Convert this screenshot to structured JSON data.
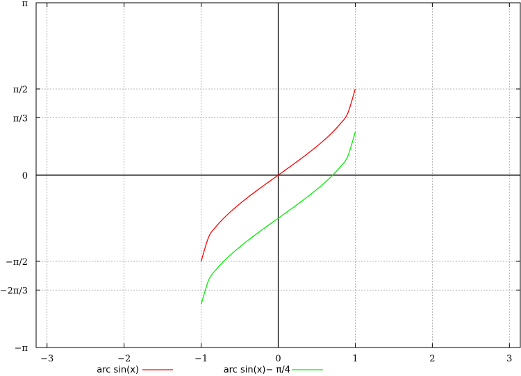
{
  "chart_data": {
    "type": "line",
    "title": "",
    "xlabel": "",
    "ylabel": "",
    "xlim": [
      -3.1416,
      3.1416
    ],
    "ylim": [
      -3.1416,
      3.1416
    ],
    "grid": true,
    "legend_position": "bottom",
    "x_ticks": [
      {
        "value": -3,
        "label": "−3"
      },
      {
        "value": -2,
        "label": "−2"
      },
      {
        "value": -1,
        "label": "−1"
      },
      {
        "value": 0,
        "label": "0"
      },
      {
        "value": 1,
        "label": "1"
      },
      {
        "value": 2,
        "label": "2"
      },
      {
        "value": 3,
        "label": "3"
      }
    ],
    "y_ticks": [
      {
        "value": 3.1416,
        "label": "π"
      },
      {
        "value": 1.5708,
        "label": "π/2"
      },
      {
        "value": 1.0472,
        "label": "π/3"
      },
      {
        "value": 0,
        "label": "0"
      },
      {
        "value": -1.5708,
        "label": "−π/2"
      },
      {
        "value": -2.0944,
        "label": "−2π/3"
      },
      {
        "value": -3.1416,
        "label": "−π"
      }
    ],
    "x": [
      -1,
      -0.9,
      -0.8,
      -0.7,
      -0.6,
      -0.5,
      -0.4,
      -0.3,
      -0.2,
      -0.1,
      0,
      0.1,
      0.2,
      0.3,
      0.4,
      0.5,
      0.6,
      0.7,
      0.8,
      0.9,
      1
    ],
    "series": [
      {
        "name": "arc sin(x)",
        "color": "#ff0000",
        "values": [
          -1.5708,
          -1.1198,
          -0.9273,
          -0.7754,
          -0.6435,
          -0.5236,
          -0.4115,
          -0.3047,
          -0.2014,
          -0.1002,
          0,
          0.1002,
          0.2014,
          0.3047,
          0.4115,
          0.5236,
          0.6435,
          0.7754,
          0.9273,
          1.1198,
          1.5708
        ]
      },
      {
        "name": "arc sin(x)− π/4",
        "color": "#00ee00",
        "values": [
          -2.3562,
          -1.9052,
          -1.7127,
          -1.5608,
          -1.4289,
          -1.309,
          -1.1969,
          -1.0901,
          -0.9868,
          -0.8856,
          -0.7854,
          -0.6852,
          -0.584,
          -0.4807,
          -0.3739,
          -0.2618,
          -0.1419,
          -0.01,
          0.1419,
          0.3344,
          0.7854
        ]
      }
    ]
  }
}
